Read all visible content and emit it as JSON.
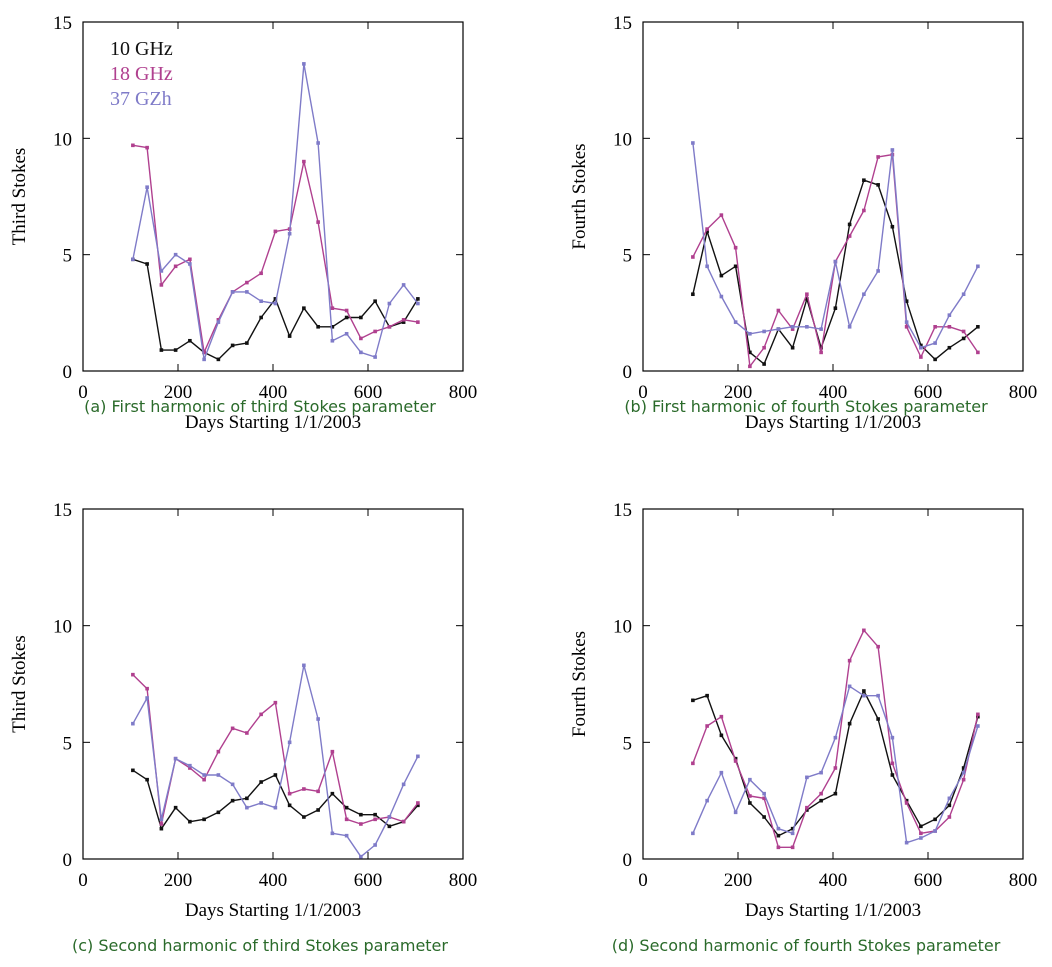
{
  "colors": {
    "s10": "#111111",
    "s18": "#b0408f",
    "s37": "#7f7bc8",
    "caption": "#2a6a2a"
  },
  "legend": [
    "10 GHz",
    "18 GHz",
    "37 GZh"
  ],
  "chart_data": [
    {
      "type": "line",
      "caption": "(a) First harmonic of third Stokes parameter",
      "xlabel": "Days Starting 1/1/2003",
      "ylabel": "Third Stokes",
      "xlim": [
        0,
        800
      ],
      "ylim": [
        0,
        15
      ],
      "xticks": [
        0,
        200,
        400,
        600,
        800
      ],
      "yticks": [
        0,
        5,
        10,
        15
      ],
      "grid": false,
      "legend_position": "top-left",
      "x": [
        105,
        135,
        165,
        195,
        225,
        255,
        285,
        315,
        345,
        375,
        405,
        435,
        465,
        495,
        525,
        555,
        585,
        615,
        645,
        675,
        705
      ],
      "series": [
        {
          "name": "10 GHz",
          "color_key": "s10",
          "values": [
            4.8,
            4.6,
            0.9,
            0.9,
            1.3,
            0.8,
            0.5,
            1.1,
            1.2,
            2.3,
            3.1,
            1.5,
            2.7,
            1.9,
            1.9,
            2.3,
            2.3,
            3.0,
            1.9,
            2.1,
            3.1
          ]
        },
        {
          "name": "18 GHz",
          "color_key": "s18",
          "values": [
            9.7,
            9.6,
            3.7,
            4.5,
            4.8,
            0.8,
            2.2,
            3.4,
            3.8,
            4.2,
            6.0,
            6.1,
            9.0,
            6.4,
            2.7,
            2.6,
            1.4,
            1.7,
            1.9,
            2.2,
            2.1
          ]
        },
        {
          "name": "37 GZh",
          "color_key": "s37",
          "values": [
            4.8,
            7.9,
            4.3,
            5.0,
            4.6,
            0.5,
            2.1,
            3.4,
            3.4,
            3.0,
            2.9,
            5.9,
            13.2,
            9.8,
            1.3,
            1.6,
            0.8,
            0.6,
            2.9,
            3.7,
            2.9
          ]
        }
      ]
    },
    {
      "type": "line",
      "caption": "(b) First harmonic of fourth Stokes parameter",
      "xlabel": "Days Starting 1/1/2003",
      "ylabel": "Fourth Stokes",
      "xlim": [
        0,
        800
      ],
      "ylim": [
        0,
        15
      ],
      "xticks": [
        0,
        200,
        400,
        600,
        800
      ],
      "yticks": [
        0,
        5,
        10,
        15
      ],
      "grid": false,
      "x": [
        105,
        135,
        165,
        195,
        225,
        255,
        285,
        315,
        345,
        375,
        405,
        435,
        465,
        495,
        525,
        555,
        585,
        615,
        645,
        675,
        705
      ],
      "series": [
        {
          "name": "10 GHz",
          "color_key": "s10",
          "values": [
            3.3,
            6.0,
            4.1,
            4.5,
            0.8,
            0.3,
            1.8,
            1.0,
            3.1,
            1.0,
            2.7,
            6.3,
            8.2,
            8.0,
            6.2,
            3.0,
            1.1,
            0.5,
            1.0,
            1.4,
            1.9
          ]
        },
        {
          "name": "18 GHz",
          "color_key": "s18",
          "values": [
            4.9,
            6.1,
            6.7,
            5.3,
            0.2,
            1.0,
            2.6,
            1.8,
            3.3,
            0.8,
            4.7,
            5.8,
            6.9,
            9.2,
            9.3,
            1.9,
            0.6,
            1.9,
            1.9,
            1.7,
            0.8
          ]
        },
        {
          "name": "37 GZh",
          "color_key": "s37",
          "values": [
            9.8,
            4.5,
            3.2,
            2.1,
            1.6,
            1.7,
            1.8,
            1.9,
            1.9,
            1.8,
            4.7,
            1.9,
            3.3,
            4.3,
            9.5,
            2.1,
            1.0,
            1.2,
            2.4,
            3.3,
            4.5
          ]
        }
      ]
    },
    {
      "type": "line",
      "caption": "(c) Second harmonic of third Stokes parameter",
      "xlabel": "Days Starting 1/1/2003",
      "ylabel": "Third Stokes",
      "xlim": [
        0,
        800
      ],
      "ylim": [
        0,
        15
      ],
      "xticks": [
        0,
        200,
        400,
        600,
        800
      ],
      "yticks": [
        0,
        5,
        10,
        15
      ],
      "grid": false,
      "x": [
        105,
        135,
        165,
        195,
        225,
        255,
        285,
        315,
        345,
        375,
        405,
        435,
        465,
        495,
        525,
        555,
        585,
        615,
        645,
        675,
        705
      ],
      "series": [
        {
          "name": "10 GHz",
          "color_key": "s10",
          "values": [
            3.8,
            3.4,
            1.3,
            2.2,
            1.6,
            1.7,
            2.0,
            2.5,
            2.6,
            3.3,
            3.6,
            2.3,
            1.8,
            2.1,
            2.8,
            2.2,
            1.9,
            1.9,
            1.4,
            1.6,
            2.3
          ]
        },
        {
          "name": "18 GHz",
          "color_key": "s18",
          "values": [
            7.9,
            7.3,
            1.5,
            4.3,
            3.9,
            3.4,
            4.6,
            5.6,
            5.4,
            6.2,
            6.7,
            2.8,
            3.0,
            2.9,
            4.6,
            1.7,
            1.5,
            1.7,
            1.8,
            1.6,
            2.4
          ]
        },
        {
          "name": "37 GZh",
          "color_key": "s37",
          "values": [
            5.8,
            6.9,
            1.7,
            4.3,
            4.0,
            3.6,
            3.6,
            3.2,
            2.2,
            2.4,
            2.2,
            5.0,
            8.3,
            6.0,
            1.1,
            1.0,
            0.1,
            0.6,
            1.8,
            3.2,
            4.4
          ]
        }
      ]
    },
    {
      "type": "line",
      "caption": "(d) Second harmonic of fourth Stokes parameter",
      "xlabel": "Days Starting 1/1/2003",
      "ylabel": "Fourth Stokes",
      "xlim": [
        0,
        800
      ],
      "ylim": [
        0,
        15
      ],
      "xticks": [
        0,
        200,
        400,
        600,
        800
      ],
      "yticks": [
        0,
        5,
        10,
        15
      ],
      "grid": false,
      "x": [
        105,
        135,
        165,
        195,
        225,
        255,
        285,
        315,
        345,
        375,
        405,
        435,
        465,
        495,
        525,
        555,
        585,
        615,
        645,
        675,
        705
      ],
      "series": [
        {
          "name": "10 GHz",
          "color_key": "s10",
          "values": [
            6.8,
            7.0,
            5.3,
            4.3,
            2.4,
            1.8,
            1.0,
            1.3,
            2.1,
            2.5,
            2.8,
            5.8,
            7.2,
            6.0,
            3.6,
            2.5,
            1.4,
            1.7,
            2.3,
            3.9,
            6.1
          ]
        },
        {
          "name": "18 GHz",
          "color_key": "s18",
          "values": [
            4.1,
            5.7,
            6.1,
            4.2,
            2.7,
            2.6,
            0.5,
            0.5,
            2.2,
            2.8,
            3.9,
            8.5,
            9.8,
            9.1,
            4.1,
            2.4,
            1.1,
            1.2,
            1.8,
            3.4,
            6.2
          ]
        },
        {
          "name": "37 GZh",
          "color_key": "s37",
          "values": [
            1.1,
            2.5,
            3.7,
            2.0,
            3.4,
            2.8,
            1.3,
            1.1,
            3.5,
            3.7,
            5.2,
            7.4,
            7.0,
            7.0,
            5.2,
            0.7,
            0.9,
            1.2,
            2.6,
            3.7,
            5.7
          ]
        }
      ]
    }
  ]
}
